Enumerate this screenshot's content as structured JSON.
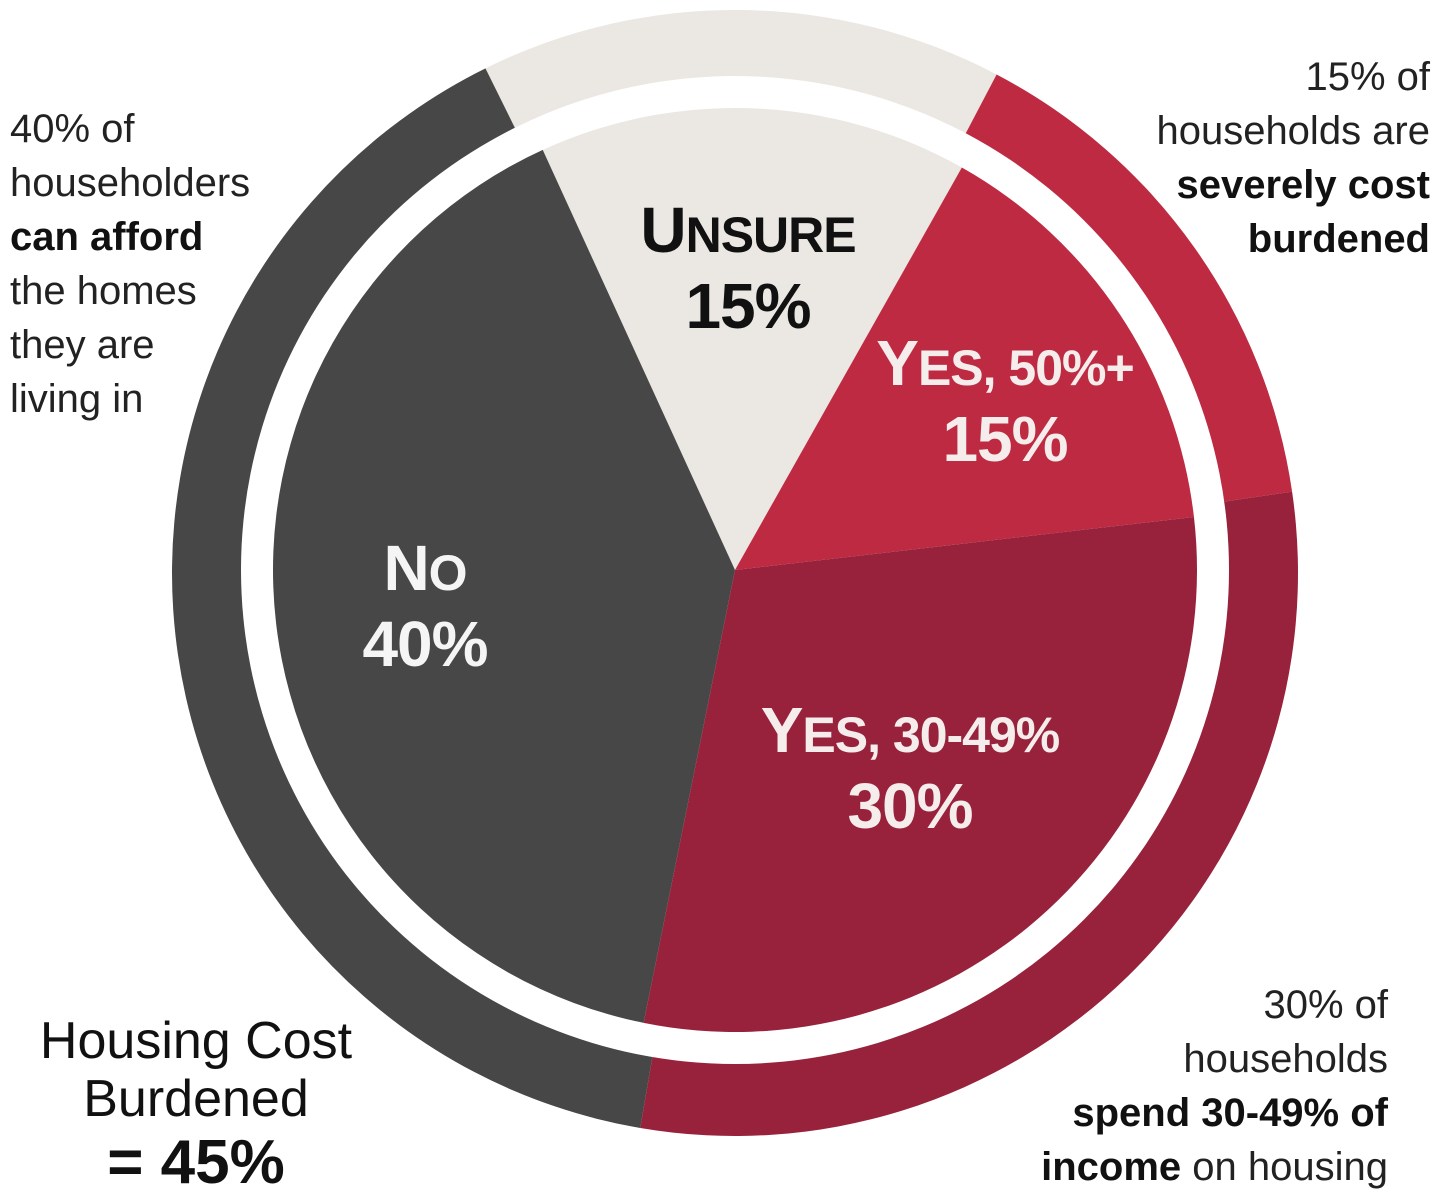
{
  "chart_data": {
    "type": "pie",
    "slices": [
      {
        "label_head": "U",
        "label_rest": "NSURE",
        "value": 15,
        "value_label": "15%",
        "color": "#ebe7e2",
        "text_color": "#111111"
      },
      {
        "label_head": "Y",
        "label_rest": "ES, 50%+",
        "value": 15,
        "value_label": "15%",
        "color": "#be2a41",
        "text_color": "#f5ecec"
      },
      {
        "label_head": "Y",
        "label_rest": "ES, 30-49%",
        "value": 30,
        "value_label": "30%",
        "color": "#98223c",
        "text_color": "#f5ecec"
      },
      {
        "label_head": "N",
        "label_rest": "O",
        "value": 40,
        "value_label": "40%",
        "color": "#474747",
        "text_color": "#f5f5f5"
      }
    ],
    "outer_ring": [
      {
        "covers": "UNSURE",
        "value": 15,
        "color": "#ebe7e2"
      },
      {
        "covers": "YES, 50%+",
        "value": 15,
        "color": "#be2a41"
      },
      {
        "covers": "YES, 30-49%",
        "value": 30,
        "color": "#98223c"
      },
      {
        "covers": "NO",
        "value": 40,
        "color": "#474747"
      }
    ]
  },
  "notes": {
    "left": {
      "l1": "40% of",
      "l2": "householders",
      "l3": "can afford",
      "l4": "the homes",
      "l5": "they are",
      "l6": "living in"
    },
    "top_right": {
      "l1": "15% of",
      "l2": "households are",
      "l3": "severely cost",
      "l4": "burdened"
    },
    "bottom_right": {
      "l1": "30% of",
      "l2": "households",
      "l3": "spend 30-49% of",
      "l4_bold": "income",
      "l4_rest": " on housing"
    }
  },
  "summary": {
    "line1": "Housing Cost",
    "line2": "Burdened",
    "total": "= 45%"
  }
}
